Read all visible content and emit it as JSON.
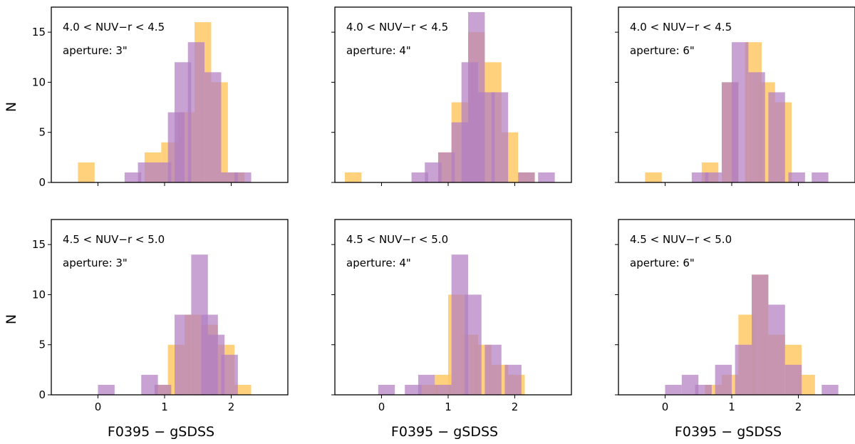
{
  "chart_data": {
    "type": "bar",
    "layout": "2x3 grid, shared x and y axes",
    "xlabel": "F0395 − gSDSS",
    "ylabel": "N",
    "xlim": [
      -0.7,
      2.85
    ],
    "ylim": [
      0,
      17.5
    ],
    "xticks": [
      0,
      1,
      2
    ],
    "yticks": [
      0,
      5,
      10,
      15
    ],
    "colors": {
      "orange": "#ffc966",
      "purple": "#b27ec2"
    },
    "panels": [
      {
        "id": "r1c1",
        "annotation_line1": "4.0 < NUV−r < 4.5",
        "annotation_line2": "aperture: 3\"",
        "bin_width": 0.25,
        "series": [
          {
            "color": "orange",
            "bins": [
              [
                -0.3,
                2
              ],
              [
                0.7,
                3
              ],
              [
                0.95,
                4
              ],
              [
                1.2,
                7
              ],
              [
                1.45,
                16
              ],
              [
                1.7,
                10
              ],
              [
                1.95,
                1
              ]
            ]
          },
          {
            "color": "purple",
            "bins": [
              [
                0.4,
                1
              ],
              [
                0.6,
                2
              ],
              [
                0.85,
                2
              ],
              [
                1.05,
                7
              ],
              [
                1.15,
                12
              ],
              [
                1.35,
                14
              ],
              [
                1.6,
                11
              ],
              [
                1.85,
                1
              ],
              [
                2.05,
                1
              ]
            ]
          }
        ]
      },
      {
        "id": "r1c2",
        "annotation_line1": "4.0 < NUV−r < 4.5",
        "annotation_line2": "aperture: 4\"",
        "bin_width": 0.25,
        "series": [
          {
            "color": "orange",
            "bins": [
              [
                -0.55,
                1
              ],
              [
                0.85,
                3
              ],
              [
                1.05,
                8
              ],
              [
                1.3,
                15
              ],
              [
                1.55,
                12
              ],
              [
                1.8,
                5
              ],
              [
                2.05,
                1
              ]
            ]
          },
          {
            "color": "purple",
            "bins": [
              [
                0.45,
                1
              ],
              [
                0.65,
                2
              ],
              [
                0.85,
                3
              ],
              [
                1.05,
                6
              ],
              [
                1.2,
                12
              ],
              [
                1.3,
                17
              ],
              [
                1.45,
                9
              ],
              [
                1.65,
                9
              ],
              [
                2.05,
                1
              ],
              [
                2.35,
                1
              ]
            ]
          }
        ]
      },
      {
        "id": "r1c3",
        "annotation_line1": "4.0 < NUV−r < 4.5",
        "annotation_line2": "aperture: 6\"",
        "bin_width": 0.25,
        "series": [
          {
            "color": "orange",
            "bins": [
              [
                -0.3,
                1
              ],
              [
                0.55,
                2
              ],
              [
                0.85,
                10
              ],
              [
                1.2,
                14
              ],
              [
                1.4,
                10
              ],
              [
                1.65,
                8
              ]
            ]
          },
          {
            "color": "purple",
            "bins": [
              [
                0.4,
                1
              ],
              [
                0.6,
                1
              ],
              [
                0.85,
                10
              ],
              [
                1.0,
                14
              ],
              [
                1.25,
                11
              ],
              [
                1.55,
                9
              ],
              [
                1.85,
                1
              ],
              [
                2.2,
                1
              ]
            ]
          }
        ]
      },
      {
        "id": "r2c1",
        "annotation_line1": "4.5 < NUV−r < 5.0",
        "annotation_line2": "aperture: 3\"",
        "bin_width": 0.25,
        "series": [
          {
            "color": "orange",
            "bins": [
              [
                0.85,
                1
              ],
              [
                1.05,
                5
              ],
              [
                1.3,
                8
              ],
              [
                1.55,
                7
              ],
              [
                1.8,
                5
              ],
              [
                2.05,
                1
              ]
            ]
          },
          {
            "color": "purple",
            "bins": [
              [
                0.0,
                1
              ],
              [
                0.65,
                2
              ],
              [
                0.85,
                1
              ],
              [
                1.15,
                8
              ],
              [
                1.4,
                14
              ],
              [
                1.55,
                8
              ],
              [
                1.65,
                6
              ],
              [
                1.85,
                4
              ]
            ]
          }
        ]
      },
      {
        "id": "r2c2",
        "annotation_line1": "4.5 < NUV−r < 5.0",
        "annotation_line2": "aperture: 4\"",
        "bin_width": 0.25,
        "series": [
          {
            "color": "orange",
            "bins": [
              [
                0.6,
                1
              ],
              [
                0.8,
                2
              ],
              [
                1.0,
                10
              ],
              [
                1.2,
                6
              ],
              [
                1.4,
                5
              ],
              [
                1.65,
                3
              ],
              [
                1.9,
                2
              ]
            ]
          },
          {
            "color": "purple",
            "bins": [
              [
                -0.05,
                1
              ],
              [
                0.35,
                1
              ],
              [
                0.55,
                2
              ],
              [
                0.8,
                1
              ],
              [
                1.05,
                14
              ],
              [
                1.25,
                10
              ],
              [
                1.55,
                5
              ],
              [
                1.85,
                3
              ]
            ]
          }
        ]
      },
      {
        "id": "r2c3",
        "annotation_line1": "4.5 < NUV−r < 5.0",
        "annotation_line2": "aperture: 6\"",
        "bin_width": 0.25,
        "series": [
          {
            "color": "orange",
            "bins": [
              [
                0.6,
                1
              ],
              [
                0.85,
                2
              ],
              [
                1.1,
                8
              ],
              [
                1.3,
                12
              ],
              [
                1.55,
                6
              ],
              [
                1.8,
                5
              ],
              [
                2.0,
                2
              ]
            ]
          },
          {
            "color": "purple",
            "bins": [
              [
                0.0,
                1
              ],
              [
                0.25,
                2
              ],
              [
                0.45,
                1
              ],
              [
                0.75,
                3
              ],
              [
                1.05,
                5
              ],
              [
                1.3,
                12
              ],
              [
                1.55,
                9
              ],
              [
                1.8,
                3
              ],
              [
                2.35,
                1
              ]
            ]
          }
        ]
      }
    ]
  }
}
